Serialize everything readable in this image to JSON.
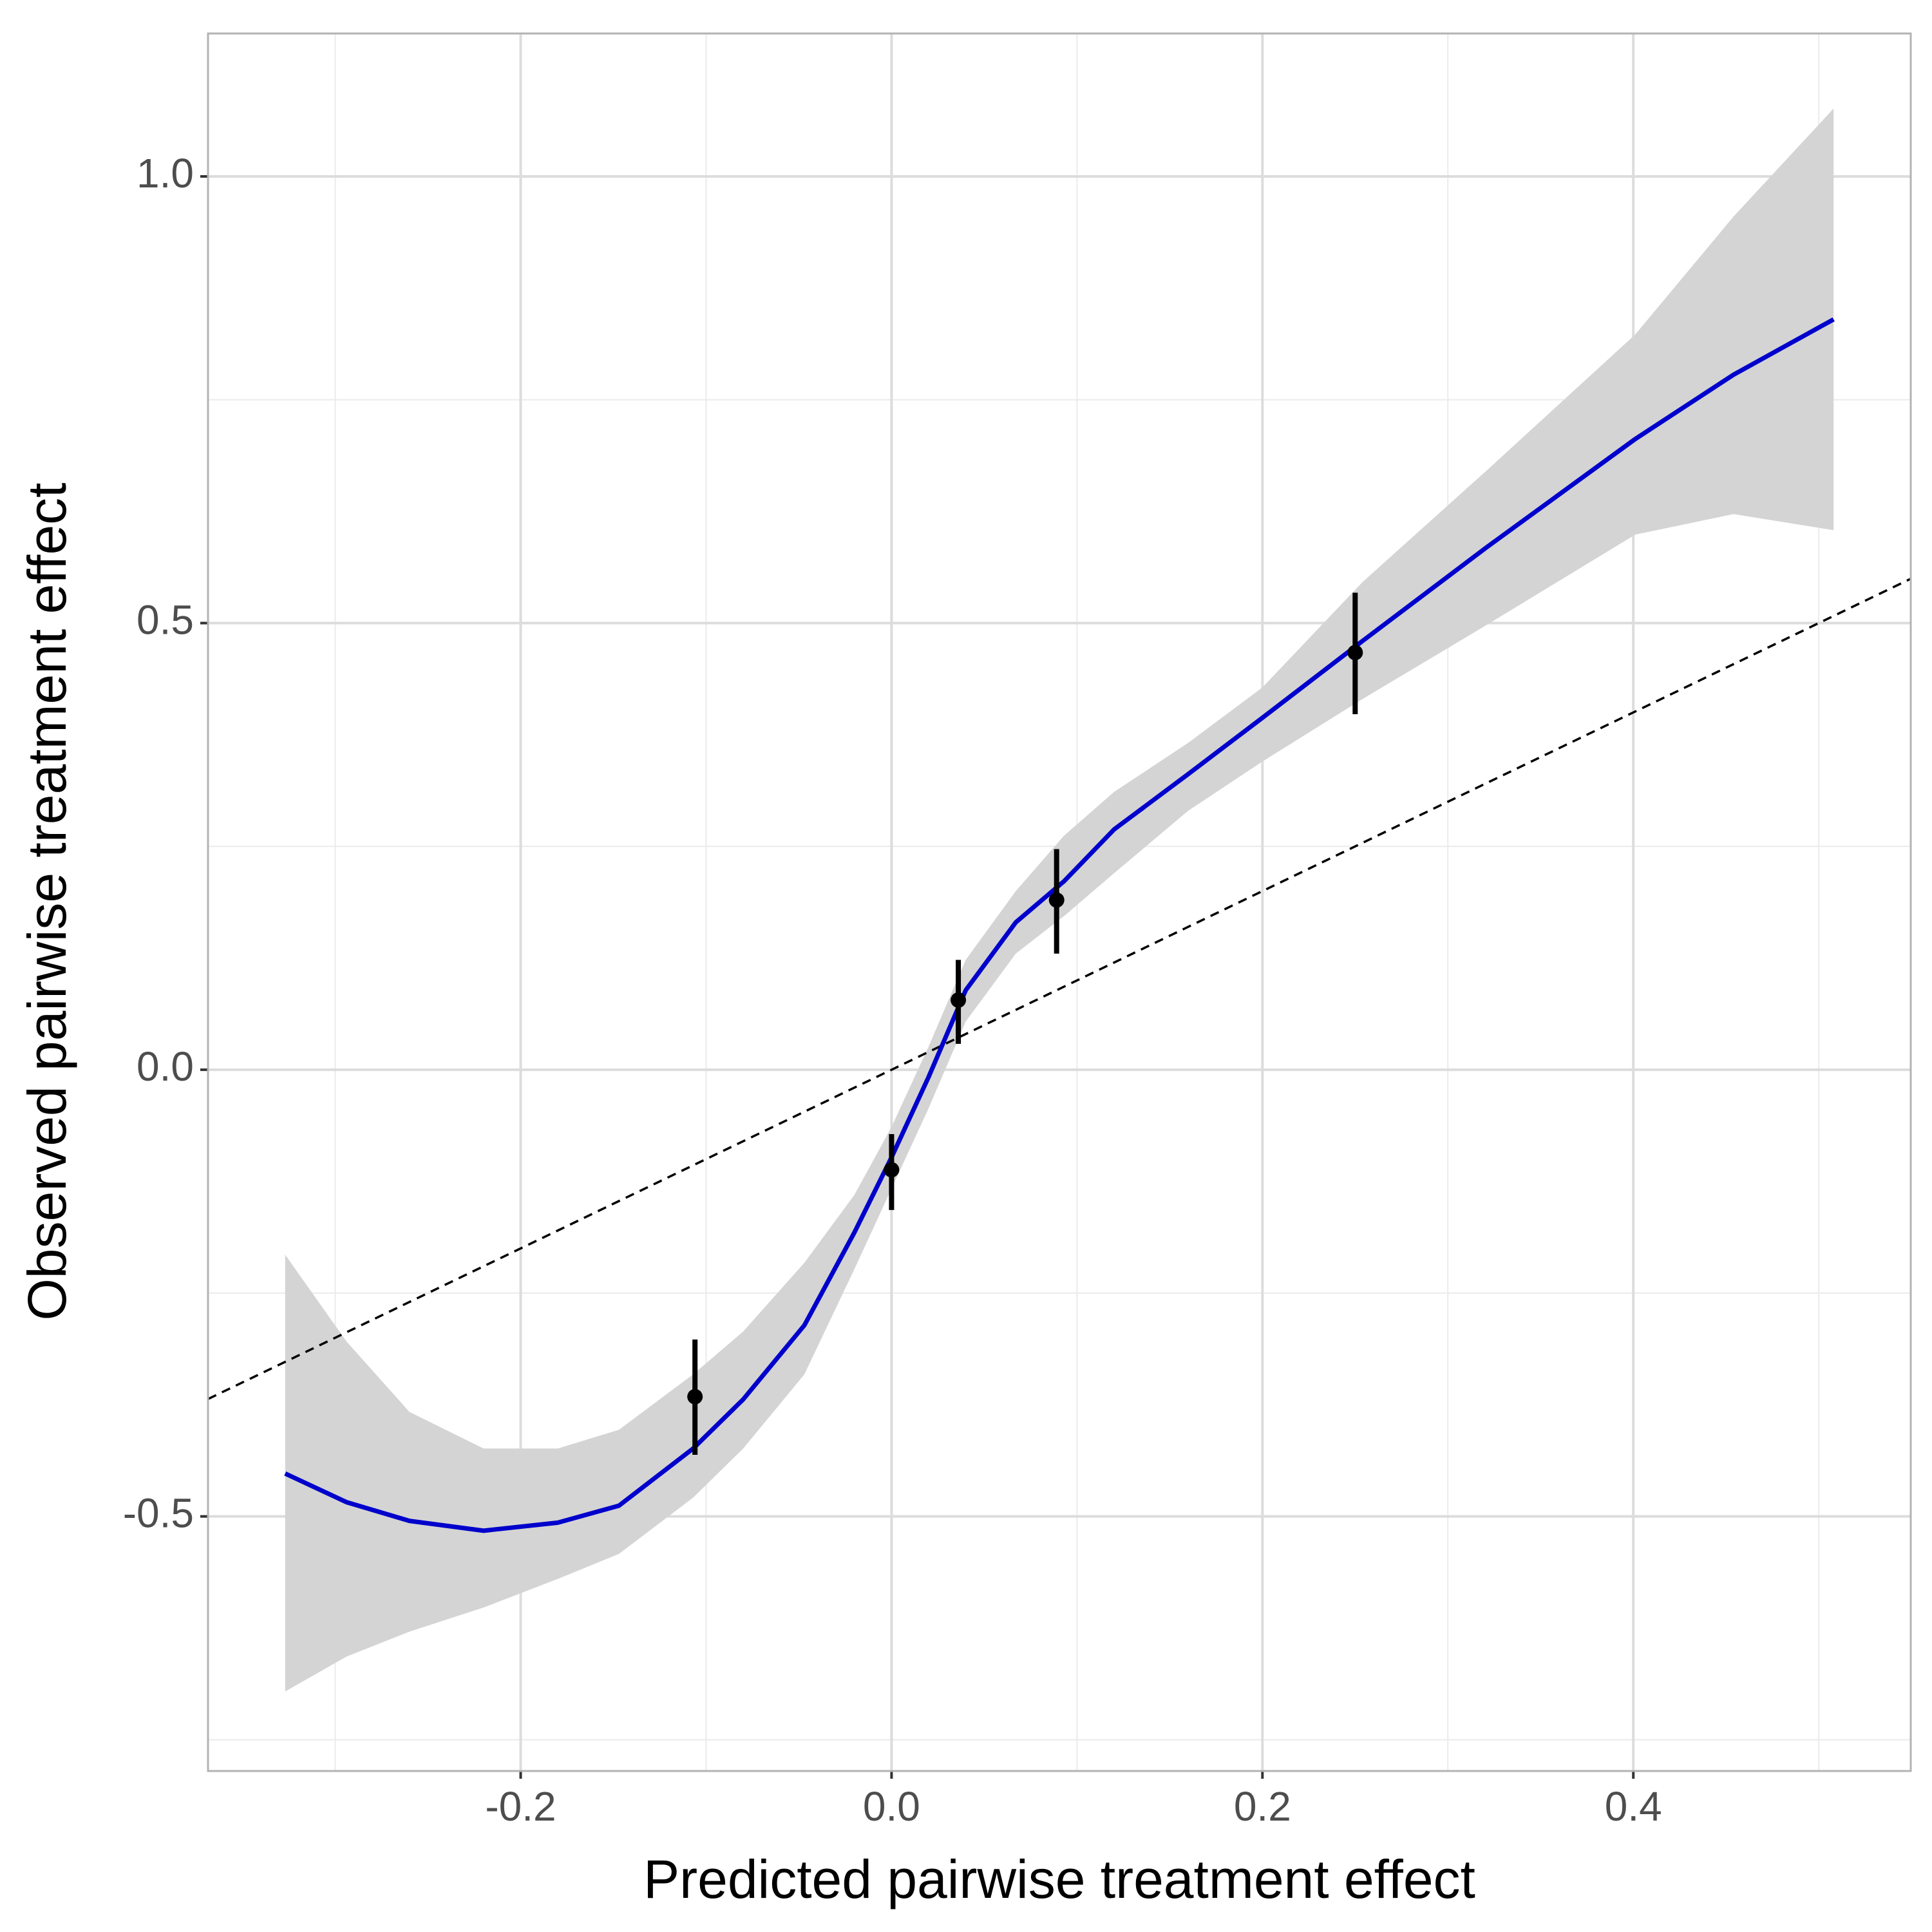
{
  "chart_data": {
    "type": "scatter",
    "x_label": "Predicted pairwise treatment effect",
    "y_label": "Observed pairwise treatment effect",
    "xlim": [
      -0.3686,
      0.5496
    ],
    "ylim": [
      -0.785,
      1.16
    ],
    "xticks": [
      {
        "value": -0.2,
        "label": "-0.2"
      },
      {
        "value": 0,
        "label": "0.0"
      },
      {
        "value": 0.2,
        "label": "0.2"
      },
      0.4
    ],
    "yticks": [
      {
        "value": -0.5,
        "label": "-0.5"
      },
      {
        "value": 0,
        "label": "0.0"
      },
      0.5,
      {
        "value": 1,
        "label": "1.0"
      }
    ],
    "x_minor_grid": [
      -0.3,
      -0.1,
      0.1,
      0.3,
      0.5
    ],
    "y_minor_grid": [
      -0.75,
      -0.25,
      0.25,
      0.75
    ],
    "grid": true,
    "reference_line": {
      "slope": 1,
      "intercept": 0,
      "color": "#000000"
    },
    "smooth": {
      "color": "#0000cc",
      "band_color": "#d4d4d4",
      "x": [
        -0.327,
        -0.294,
        -0.26,
        -0.22,
        -0.18,
        -0.147,
        -0.107,
        -0.08,
        -0.047,
        -0.02,
        0,
        0.02,
        0.04,
        0.067,
        0.093,
        0.12,
        0.16,
        0.2,
        0.254,
        0.321,
        0.401,
        0.454,
        0.508
      ],
      "y": [
        -0.452,
        -0.484,
        -0.505,
        -0.516,
        -0.507,
        -0.488,
        -0.424,
        -0.369,
        -0.286,
        -0.182,
        -0.098,
        -0.008,
        0.089,
        0.165,
        0.211,
        0.269,
        0.331,
        0.394,
        0.48,
        0.585,
        0.706,
        0.778,
        0.84
      ],
      "lower": [
        -0.696,
        -0.657,
        -0.629,
        -0.602,
        -0.57,
        -0.542,
        -0.479,
        -0.424,
        -0.341,
        -0.223,
        -0.133,
        -0.043,
        0.054,
        0.13,
        0.172,
        0.22,
        0.29,
        0.345,
        0.415,
        0.498,
        0.599,
        0.622,
        0.604
      ],
      "upper": [
        -0.207,
        -0.304,
        -0.383,
        -0.424,
        -0.424,
        -0.403,
        -0.341,
        -0.293,
        -0.216,
        -0.14,
        -0.064,
        0.026,
        0.123,
        0.2,
        0.262,
        0.311,
        0.366,
        0.428,
        0.546,
        0.671,
        0.823,
        0.955,
        1.076
      ]
    },
    "points": {
      "color": "#000000",
      "x": [
        -0.106,
        0,
        0.036,
        0.089,
        0.25
      ],
      "y": [
        -0.366,
        -0.112,
        0.078,
        0.19,
        0.467
      ],
      "ymin": [
        -0.431,
        -0.157,
        0.029,
        0.13,
        0.398
      ],
      "ymax": [
        -0.302,
        -0.072,
        0.123,
        0.247,
        0.534
      ]
    }
  }
}
